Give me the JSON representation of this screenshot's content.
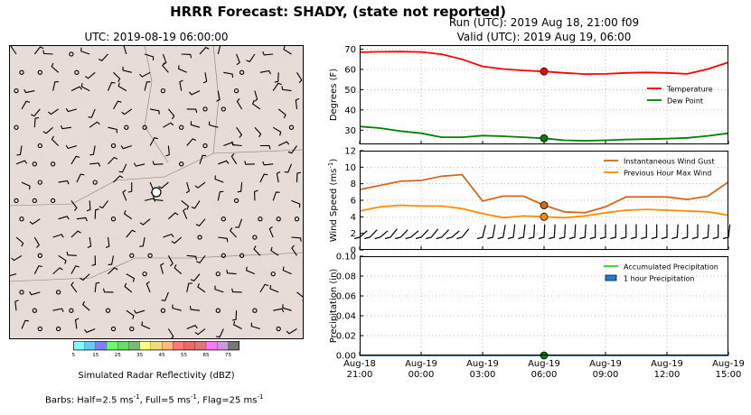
{
  "title": "HRRR Forecast: SHADY, (state not reported)",
  "map": {
    "title": "UTC: 2019-08-19 06:00:00",
    "colorbar": {
      "label": "Simulated Radar Reflectivity (dBZ)",
      "ticks": [
        "5",
        "15",
        "25",
        "35",
        "45",
        "55",
        "65",
        "75"
      ],
      "colors": [
        "#7fffff",
        "#66ccff",
        "#7f7fff",
        "#66ff66",
        "#66dd66",
        "#77bb77",
        "#ffff7f",
        "#eedd77",
        "#ffbb77",
        "#ff7777",
        "#ee6666",
        "#dd7777",
        "#ff77ff",
        "#cc99dd",
        "#777777"
      ]
    },
    "barb_note": {
      "prefix": "Barbs: Half=2.5 ms",
      "half_sup": "-1",
      "full": ", Full=5 ms",
      "full_sup": "-1",
      "flag": ", Flag=25 ms",
      "flag_sup": "-1"
    }
  },
  "run_line": "Run (UTC): 2019 Aug 18, 21:00 f09",
  "valid_line": "Valid (UTC): 2019 Aug 19, 06:00",
  "x_ticks": [
    {
      "line1": "Aug-18",
      "line2": "21:00"
    },
    {
      "line1": "Aug-19",
      "line2": "00:00"
    },
    {
      "line1": "Aug-19",
      "line2": "03:00"
    },
    {
      "line1": "Aug-19",
      "line2": "06:00"
    },
    {
      "line1": "Aug-19",
      "line2": "09:00"
    },
    {
      "line1": "Aug-19",
      "line2": "12:00"
    },
    {
      "line1": "Aug-19",
      "line2": "15:00"
    }
  ],
  "chart_data": [
    {
      "type": "line",
      "ylabel": "Degrees (F)",
      "xlim": [
        0,
        18
      ],
      "ylim": [
        23,
        72
      ],
      "yticks": [
        30,
        40,
        50,
        60,
        70
      ],
      "grid": true,
      "legend": "right",
      "x": [
        0,
        1,
        2,
        3,
        4,
        5,
        6,
        7,
        8,
        9,
        10,
        11,
        12,
        13,
        14,
        15,
        16,
        17,
        18
      ],
      "series": [
        {
          "name": "Temperature",
          "color": "#ff0000",
          "values": [
            68.5,
            68.7,
            68.8,
            68.6,
            67.5,
            65,
            61.5,
            60.2,
            59.5,
            59,
            58.3,
            57.7,
            57.8,
            58.3,
            58.5,
            58.3,
            57.8,
            60.2,
            63.5
          ]
        },
        {
          "name": "Dew Point",
          "color": "#008000",
          "values": [
            31.8,
            31,
            29.5,
            28.5,
            26.5,
            26.5,
            27.3,
            27,
            26.5,
            26,
            25,
            24.8,
            25,
            25.4,
            25.6,
            25.8,
            26.2,
            27.2,
            28.5
          ]
        }
      ],
      "markers": [
        {
          "x": 9,
          "y": 59,
          "color": "#ff0000"
        },
        {
          "x": 9,
          "y": 26,
          "color": "#008000"
        }
      ]
    },
    {
      "type": "line",
      "ylabel": "Wind Speed (ms",
      "ylabel_sup": "-1",
      "ylabel_suffix": ")",
      "xlim": [
        0,
        18
      ],
      "ylim": [
        0,
        12
      ],
      "yticks": [
        0,
        2,
        4,
        6,
        8,
        10,
        12
      ],
      "grid": true,
      "legend": "top-right",
      "x": [
        0,
        1,
        2,
        3,
        4,
        5,
        6,
        7,
        8,
        9,
        10,
        11,
        12,
        13,
        14,
        15,
        16,
        17,
        18
      ],
      "series": [
        {
          "name": "Instantaneous Wind Gust",
          "color": "#d2691e",
          "values": [
            7.3,
            7.8,
            8.3,
            8.4,
            8.9,
            9.1,
            5.9,
            6.5,
            6.5,
            5.4,
            4.6,
            4.5,
            5.2,
            6.4,
            6.4,
            6.4,
            6.1,
            6.5,
            8.2
          ]
        },
        {
          "name": "Previous Hour Max Wind",
          "color": "#ff8c00",
          "values": [
            4.7,
            5.2,
            5.4,
            5.3,
            5.3,
            5.0,
            4.4,
            3.9,
            4.1,
            4.0,
            3.9,
            4.1,
            4.5,
            4.8,
            4.9,
            4.8,
            4.7,
            4.6,
            4.2
          ]
        }
      ],
      "markers": [
        {
          "x": 9,
          "y": 5.4,
          "color": "#d2691e"
        },
        {
          "x": 9,
          "y": 4.0,
          "color": "#ff8c00"
        }
      ],
      "barbs": [
        {
          "x": 0,
          "angle": 60
        },
        {
          "x": 0.5,
          "angle": 55
        },
        {
          "x": 1,
          "angle": 60
        },
        {
          "x": 1.5,
          "angle": 50
        },
        {
          "x": 2,
          "angle": 55
        },
        {
          "x": 2.5,
          "angle": 60
        },
        {
          "x": 3,
          "angle": 55
        },
        {
          "x": 3.5,
          "angle": 50
        },
        {
          "x": 4,
          "angle": 55
        },
        {
          "x": 4.5,
          "angle": 60
        },
        {
          "x": 5,
          "angle": 50
        },
        {
          "x": 6,
          "angle": 20
        },
        {
          "x": 6.5,
          "angle": 15
        },
        {
          "x": 7,
          "angle": 15
        },
        {
          "x": 7.5,
          "angle": 10
        },
        {
          "x": 8,
          "angle": 10
        },
        {
          "x": 8.5,
          "angle": 5
        },
        {
          "x": 9,
          "angle": 5
        },
        {
          "x": 9.5,
          "angle": 5
        },
        {
          "x": 10,
          "angle": 5
        },
        {
          "x": 10.5,
          "angle": 5
        },
        {
          "x": 11,
          "angle": 5
        },
        {
          "x": 11.5,
          "angle": 0
        },
        {
          "x": 12,
          "angle": 0
        },
        {
          "x": 12.5,
          "angle": 0
        },
        {
          "x": 13,
          "angle": 0
        },
        {
          "x": 13.5,
          "angle": 0
        },
        {
          "x": 14,
          "angle": 0
        },
        {
          "x": 14.5,
          "angle": 0
        },
        {
          "x": 15,
          "angle": 0
        },
        {
          "x": 15.5,
          "angle": 5
        },
        {
          "x": 16,
          "angle": 0
        },
        {
          "x": 16.5,
          "angle": 0
        },
        {
          "x": 17,
          "angle": 5
        },
        {
          "x": 17.5,
          "angle": 0
        },
        {
          "x": 18,
          "angle": 10
        }
      ]
    },
    {
      "type": "line",
      "ylabel": "Precipitation (in)",
      "xlim": [
        0,
        18
      ],
      "ylim": [
        0,
        0.1
      ],
      "yticks": [
        "0.00",
        "0.02",
        "0.04",
        "0.06",
        "0.08",
        "0.10"
      ],
      "grid": true,
      "legend": "top-right",
      "x": [
        0,
        18
      ],
      "series": [
        {
          "name": "Accumulated Precipitation",
          "color": "#33cc33",
          "values": [
            0,
            0
          ]
        },
        {
          "name": "1 hour Precipitation",
          "color": "#1e7fd6",
          "values": [
            0,
            0
          ]
        }
      ],
      "markers": [
        {
          "x": 9,
          "y": 0,
          "color": "#008000"
        }
      ]
    }
  ]
}
